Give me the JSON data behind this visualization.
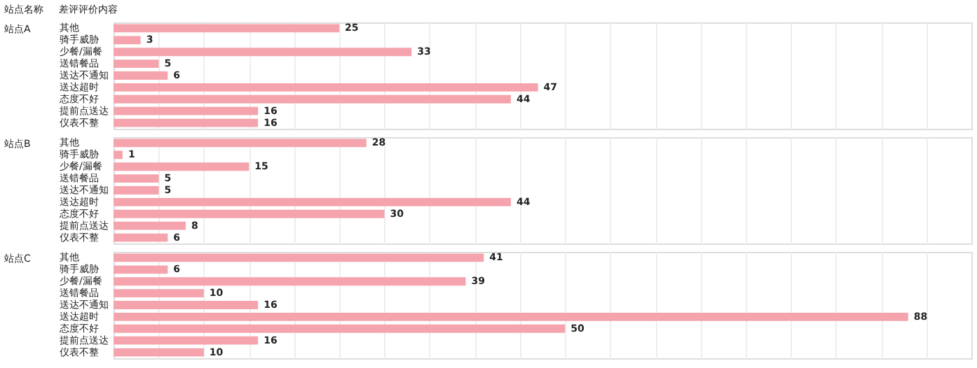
{
  "chart_data": [
    {
      "type": "bar",
      "orientation": "horizontal",
      "title": "站点A",
      "annotations": [
        "站点名称",
        "差评评价内容"
      ],
      "categories": [
        "其他",
        "骑手威胁",
        "少餐/漏餐",
        "送错餐品",
        "送达不通知",
        "送达超时",
        "态度不好",
        "提前点送达",
        "仪表不整"
      ],
      "values": [
        25,
        3,
        33,
        5,
        6,
        47,
        44,
        16,
        16
      ],
      "color": "#f5a3ac",
      "data_labels": true,
      "xlim": [
        0,
        95
      ],
      "xticks": [
        {
          "value": 5,
          "label": null
        },
        {
          "value": 10,
          "label": null
        },
        {
          "value": 15,
          "label": null
        },
        {
          "value": 20,
          "label": null
        },
        {
          "value": 25,
          "label": null
        },
        {
          "value": 30,
          "label": null
        },
        {
          "value": 35,
          "label": null
        },
        {
          "value": 40,
          "label": null
        },
        {
          "value": 45,
          "label": null
        },
        {
          "value": 50,
          "label": null
        },
        {
          "value": 55,
          "label": null
        },
        {
          "value": 60,
          "label": null
        },
        {
          "value": 65,
          "label": null
        },
        {
          "value": 70,
          "label": null
        },
        {
          "value": 75,
          "label": null
        },
        {
          "value": 80,
          "label": null
        },
        {
          "value": 85,
          "label": null
        },
        {
          "value": 90,
          "label": null
        }
      ],
      "grid": "x",
      "tick_labels": "y"
    },
    {
      "type": "bar",
      "orientation": "horizontal",
      "title": "站点B",
      "categories": [
        "其他",
        "骑手威胁",
        "少餐/漏餐",
        "送错餐品",
        "送达不通知",
        "送达超时",
        "态度不好",
        "提前点送达",
        "仪表不整"
      ],
      "values": [
        28,
        1,
        15,
        5,
        5,
        44,
        30,
        8,
        6
      ],
      "color": "#f5a3ac",
      "data_labels": true,
      "xlim": [
        0,
        95
      ],
      "xticks": [
        {
          "value": 5,
          "label": null
        },
        {
          "value": 10,
          "label": null
        },
        {
          "value": 15,
          "label": null
        },
        {
          "value": 20,
          "label": null
        },
        {
          "value": 25,
          "label": null
        },
        {
          "value": 30,
          "label": null
        },
        {
          "value": 35,
          "label": null
        },
        {
          "value": 40,
          "label": null
        },
        {
          "value": 45,
          "label": null
        },
        {
          "value": 50,
          "label": null
        },
        {
          "value": 55,
          "label": null
        },
        {
          "value": 60,
          "label": null
        },
        {
          "value": 65,
          "label": null
        },
        {
          "value": 70,
          "label": null
        },
        {
          "value": 75,
          "label": null
        },
        {
          "value": 80,
          "label": null
        },
        {
          "value": 85,
          "label": null
        },
        {
          "value": 90,
          "label": null
        }
      ],
      "grid": "x",
      "tick_labels": "y"
    },
    {
      "type": "bar",
      "orientation": "horizontal",
      "title": "站点C",
      "categories": [
        "其他",
        "骑手威胁",
        "少餐/漏餐",
        "送错餐品",
        "送达不通知",
        "送达超时",
        "态度不好",
        "提前点送达",
        "仪表不整"
      ],
      "values": [
        41,
        6,
        39,
        10,
        16,
        88,
        50,
        16,
        10
      ],
      "color": "#f5a3ac",
      "data_labels": true,
      "xlim": [
        0,
        95
      ],
      "xticks": [
        {
          "value": 5,
          "label": null
        },
        {
          "value": 10,
          "label": null
        },
        {
          "value": 15,
          "label": null
        },
        {
          "value": 20,
          "label": null
        },
        {
          "value": 25,
          "label": null
        },
        {
          "value": 30,
          "label": null
        },
        {
          "value": 35,
          "label": null
        },
        {
          "value": 40,
          "label": null
        },
        {
          "value": 45,
          "label": null
        },
        {
          "value": 50,
          "label": null
        },
        {
          "value": 55,
          "label": null
        },
        {
          "value": 60,
          "label": null
        },
        {
          "value": 65,
          "label": null
        },
        {
          "value": 70,
          "label": null
        },
        {
          "value": 75,
          "label": null
        },
        {
          "value": 80,
          "label": null
        },
        {
          "value": 85,
          "label": null
        },
        {
          "value": 90,
          "label": null
        }
      ],
      "grid": "x",
      "tick_labels": "y"
    }
  ]
}
